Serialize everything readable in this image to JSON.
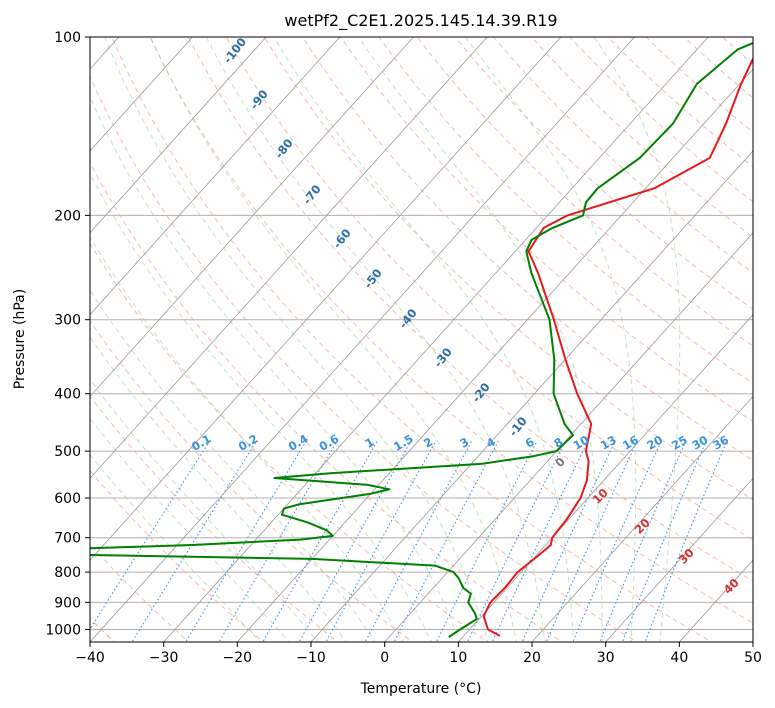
{
  "chart_data": {
    "type": "line",
    "diagram": "skew-T log-P",
    "title": "wetPf2_C2E1.2025.145.14.39.R19",
    "xlabel": "Temperature (°C)",
    "ylabel": "Pressure (hPa)",
    "xlim": [
      -40,
      50
    ],
    "ylim": [
      1050,
      100
    ],
    "y_scale": "log",
    "x_ticks": [
      -40,
      -30,
      -20,
      -10,
      0,
      10,
      20,
      30,
      40,
      50
    ],
    "y_ticks": [
      1000,
      900,
      800,
      700,
      600,
      500,
      400,
      300,
      200,
      100
    ],
    "grid": true,
    "series": [
      {
        "color": "#e41a1c",
        "points": [
          [
            1025,
            14.9
          ],
          [
            1000,
            12.5
          ],
          [
            950,
            10.3
          ],
          [
            900,
            9.5
          ],
          [
            850,
            9.7
          ],
          [
            800,
            9.5
          ],
          [
            750,
            10.3
          ],
          [
            720,
            10.7
          ],
          [
            700,
            10.0
          ],
          [
            650,
            9.7
          ],
          [
            600,
            9.0
          ],
          [
            560,
            7.7
          ],
          [
            520,
            5.6
          ],
          [
            500,
            4.0
          ],
          [
            450,
            1.4
          ],
          [
            400,
            -4.2
          ],
          [
            350,
            -10.0
          ],
          [
            300,
            -16.4
          ],
          [
            250,
            -24.3
          ],
          [
            230,
            -28.2
          ],
          [
            210,
            -29.0
          ],
          [
            200,
            -27.3
          ],
          [
            180,
            -18.8
          ],
          [
            160,
            -15.0
          ],
          [
            140,
            -17.0
          ],
          [
            120,
            -19.8
          ],
          [
            100,
            -22.5
          ]
        ]
      },
      {
        "color": "#008000",
        "points": [
          [
            1030,
            8.1
          ],
          [
            1000,
            8.7
          ],
          [
            960,
            9.7
          ],
          [
            940,
            8.8
          ],
          [
            900,
            6.5
          ],
          [
            870,
            5.8
          ],
          [
            850,
            4.0
          ],
          [
            820,
            2.3
          ],
          [
            800,
            0.8
          ],
          [
            780,
            -2.5
          ],
          [
            760,
            -20.0
          ],
          [
            745,
            -60.0
          ],
          [
            735,
            -60.0
          ],
          [
            720,
            -38.0
          ],
          [
            705,
            -24.0
          ],
          [
            695,
            -20.0
          ],
          [
            680,
            -21.5
          ],
          [
            660,
            -25.0
          ],
          [
            640,
            -29.5
          ],
          [
            625,
            -30.0
          ],
          [
            615,
            -28.5
          ],
          [
            600,
            -23.5
          ],
          [
            590,
            -20.0
          ],
          [
            580,
            -18.0
          ],
          [
            570,
            -21.5
          ],
          [
            555,
            -35.0
          ],
          [
            545,
            -28.0
          ],
          [
            525,
            -8.5
          ],
          [
            510,
            -2.5
          ],
          [
            500,
            0.0
          ],
          [
            470,
            0.3
          ],
          [
            450,
            -2.2
          ],
          [
            400,
            -7.4
          ],
          [
            350,
            -11.5
          ],
          [
            300,
            -17.0
          ],
          [
            250,
            -25.2
          ],
          [
            230,
            -28.5
          ],
          [
            220,
            -29.2
          ],
          [
            210,
            -27.8
          ],
          [
            200,
            -25.2
          ],
          [
            190,
            -26.4
          ],
          [
            180,
            -26.5
          ],
          [
            160,
            -24.5
          ],
          [
            140,
            -24.2
          ],
          [
            120,
            -25.8
          ],
          [
            105,
            -24.5
          ],
          [
            100,
            -22.0
          ]
        ]
      }
    ],
    "annotations": {
      "mixing_ratio_labels": [
        "0.1",
        "0.2",
        "0.4",
        "0.6",
        "1",
        "1.5",
        "2",
        "3",
        "4",
        "6",
        "8",
        "10",
        "13",
        "16",
        "20",
        "25",
        "30",
        "36"
      ],
      "moist_adiabat_labels": [
        "-100",
        "-90",
        "-80",
        "-70",
        "-60",
        "-50",
        "-40",
        "-30",
        "-20",
        "-10"
      ],
      "dry_adiabat_labels": [
        "0",
        "10",
        "20",
        "30",
        "40"
      ]
    }
  }
}
